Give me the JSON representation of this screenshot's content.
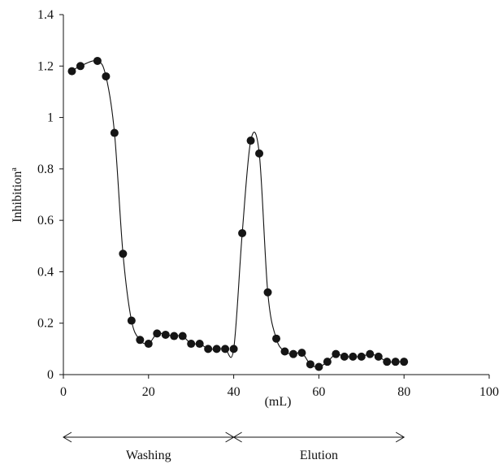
{
  "chart_data": {
    "type": "scatter",
    "xlabel": "(mL)",
    "ylabel": "Inhibition",
    "ylabel_superscript": "a",
    "xlim": [
      0,
      100
    ],
    "ylim": [
      0,
      1.4
    ],
    "x_ticks": [
      "0",
      "20",
      "40",
      "60",
      "80",
      "100"
    ],
    "y_ticks": [
      "0",
      "0.2",
      "0.4",
      "0.6",
      "0.8",
      "1",
      "1.2",
      "1.4"
    ],
    "grid": false,
    "smooth_line": true,
    "series": [
      {
        "x": [
          2,
          4,
          8,
          10,
          12,
          14,
          16,
          18,
          20,
          22,
          24,
          26,
          28,
          30,
          32,
          34,
          36,
          38,
          40,
          42,
          44,
          46,
          48,
          50,
          52,
          54,
          56,
          58,
          60,
          62,
          64,
          66,
          68,
          70,
          72,
          74,
          76,
          78,
          80
        ],
        "y": [
          1.18,
          1.2,
          1.22,
          1.16,
          0.94,
          0.47,
          0.21,
          0.135,
          0.12,
          0.16,
          0.155,
          0.15,
          0.15,
          0.12,
          0.12,
          0.1,
          0.1,
          0.1,
          0.1,
          0.55,
          0.91,
          0.86,
          0.32,
          0.14,
          0.09,
          0.08,
          0.085,
          0.04,
          0.03,
          0.05,
          0.08,
          0.07,
          0.07,
          0.07,
          0.08,
          0.07,
          0.05,
          0.05,
          0.05
        ]
      }
    ],
    "phases": [
      {
        "label": "Washing",
        "start": 0,
        "end": 40
      },
      {
        "label": "Elution",
        "start": 40,
        "end": 80
      }
    ]
  }
}
